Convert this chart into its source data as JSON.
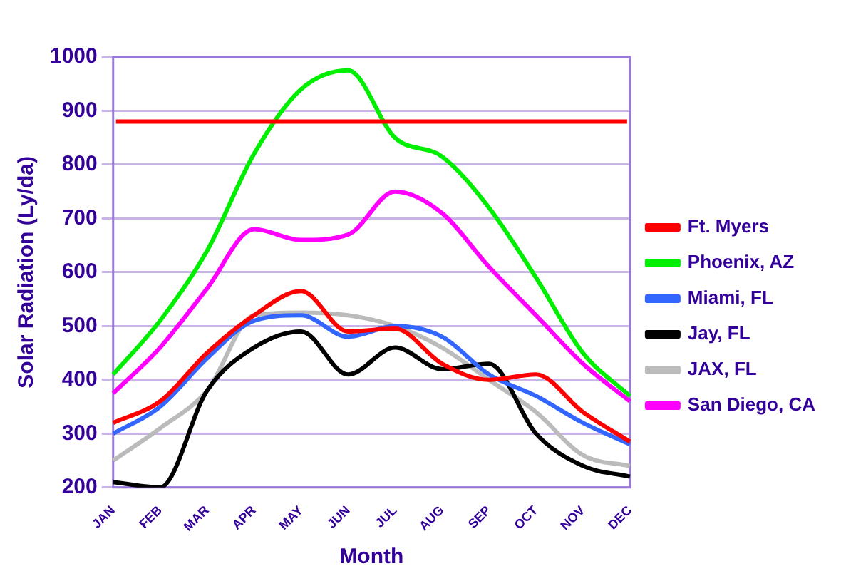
{
  "chart_data": {
    "type": "line",
    "xlabel": "Month",
    "ylabel": "Solar Radiation (Ly/da)",
    "categories": [
      "JAN",
      "FEB",
      "MAR",
      "APR",
      "MAY",
      "JUN",
      "JUL",
      "AUG",
      "SEP",
      "OCT",
      "NOV",
      "DEC"
    ],
    "series": [
      {
        "name": "Ft. Myers",
        "color": "#ff0000",
        "values": [
          320,
          360,
          450,
          520,
          565,
          490,
          495,
          430,
          400,
          410,
          340,
          285
        ]
      },
      {
        "name": "Phoenix, AZ",
        "color": "#00ee00",
        "values": [
          410,
          510,
          640,
          820,
          940,
          975,
          850,
          815,
          720,
          590,
          450,
          370
        ]
      },
      {
        "name": "Miami, FL",
        "color": "#3366ff",
        "values": [
          300,
          350,
          440,
          510,
          520,
          480,
          500,
          480,
          410,
          370,
          320,
          280
        ]
      },
      {
        "name": "Jay, FL",
        "color": "#000000",
        "values": [
          210,
          200,
          380,
          460,
          490,
          410,
          460,
          420,
          430,
          300,
          240,
          220
        ]
      },
      {
        "name": "JAX, FL",
        "color": "#bbbbbb",
        "values": [
          250,
          310,
          380,
          520,
          525,
          520,
          500,
          460,
          400,
          340,
          260,
          240
        ]
      },
      {
        "name": "San Diego, CA",
        "color": "#ff00ff",
        "values": [
          375,
          460,
          570,
          680,
          660,
          670,
          750,
          710,
          610,
          520,
          430,
          360
        ]
      }
    ],
    "ylim": [
      200,
      1000
    ],
    "yticks": [
      200,
      300,
      400,
      500,
      600,
      700,
      800,
      900,
      1000
    ],
    "ref_lines": [
      {
        "axis": "y",
        "value": 880,
        "color": "#ff0000"
      }
    ],
    "grid": "y",
    "legend": "right",
    "marker": "none",
    "line_style": "solid"
  }
}
